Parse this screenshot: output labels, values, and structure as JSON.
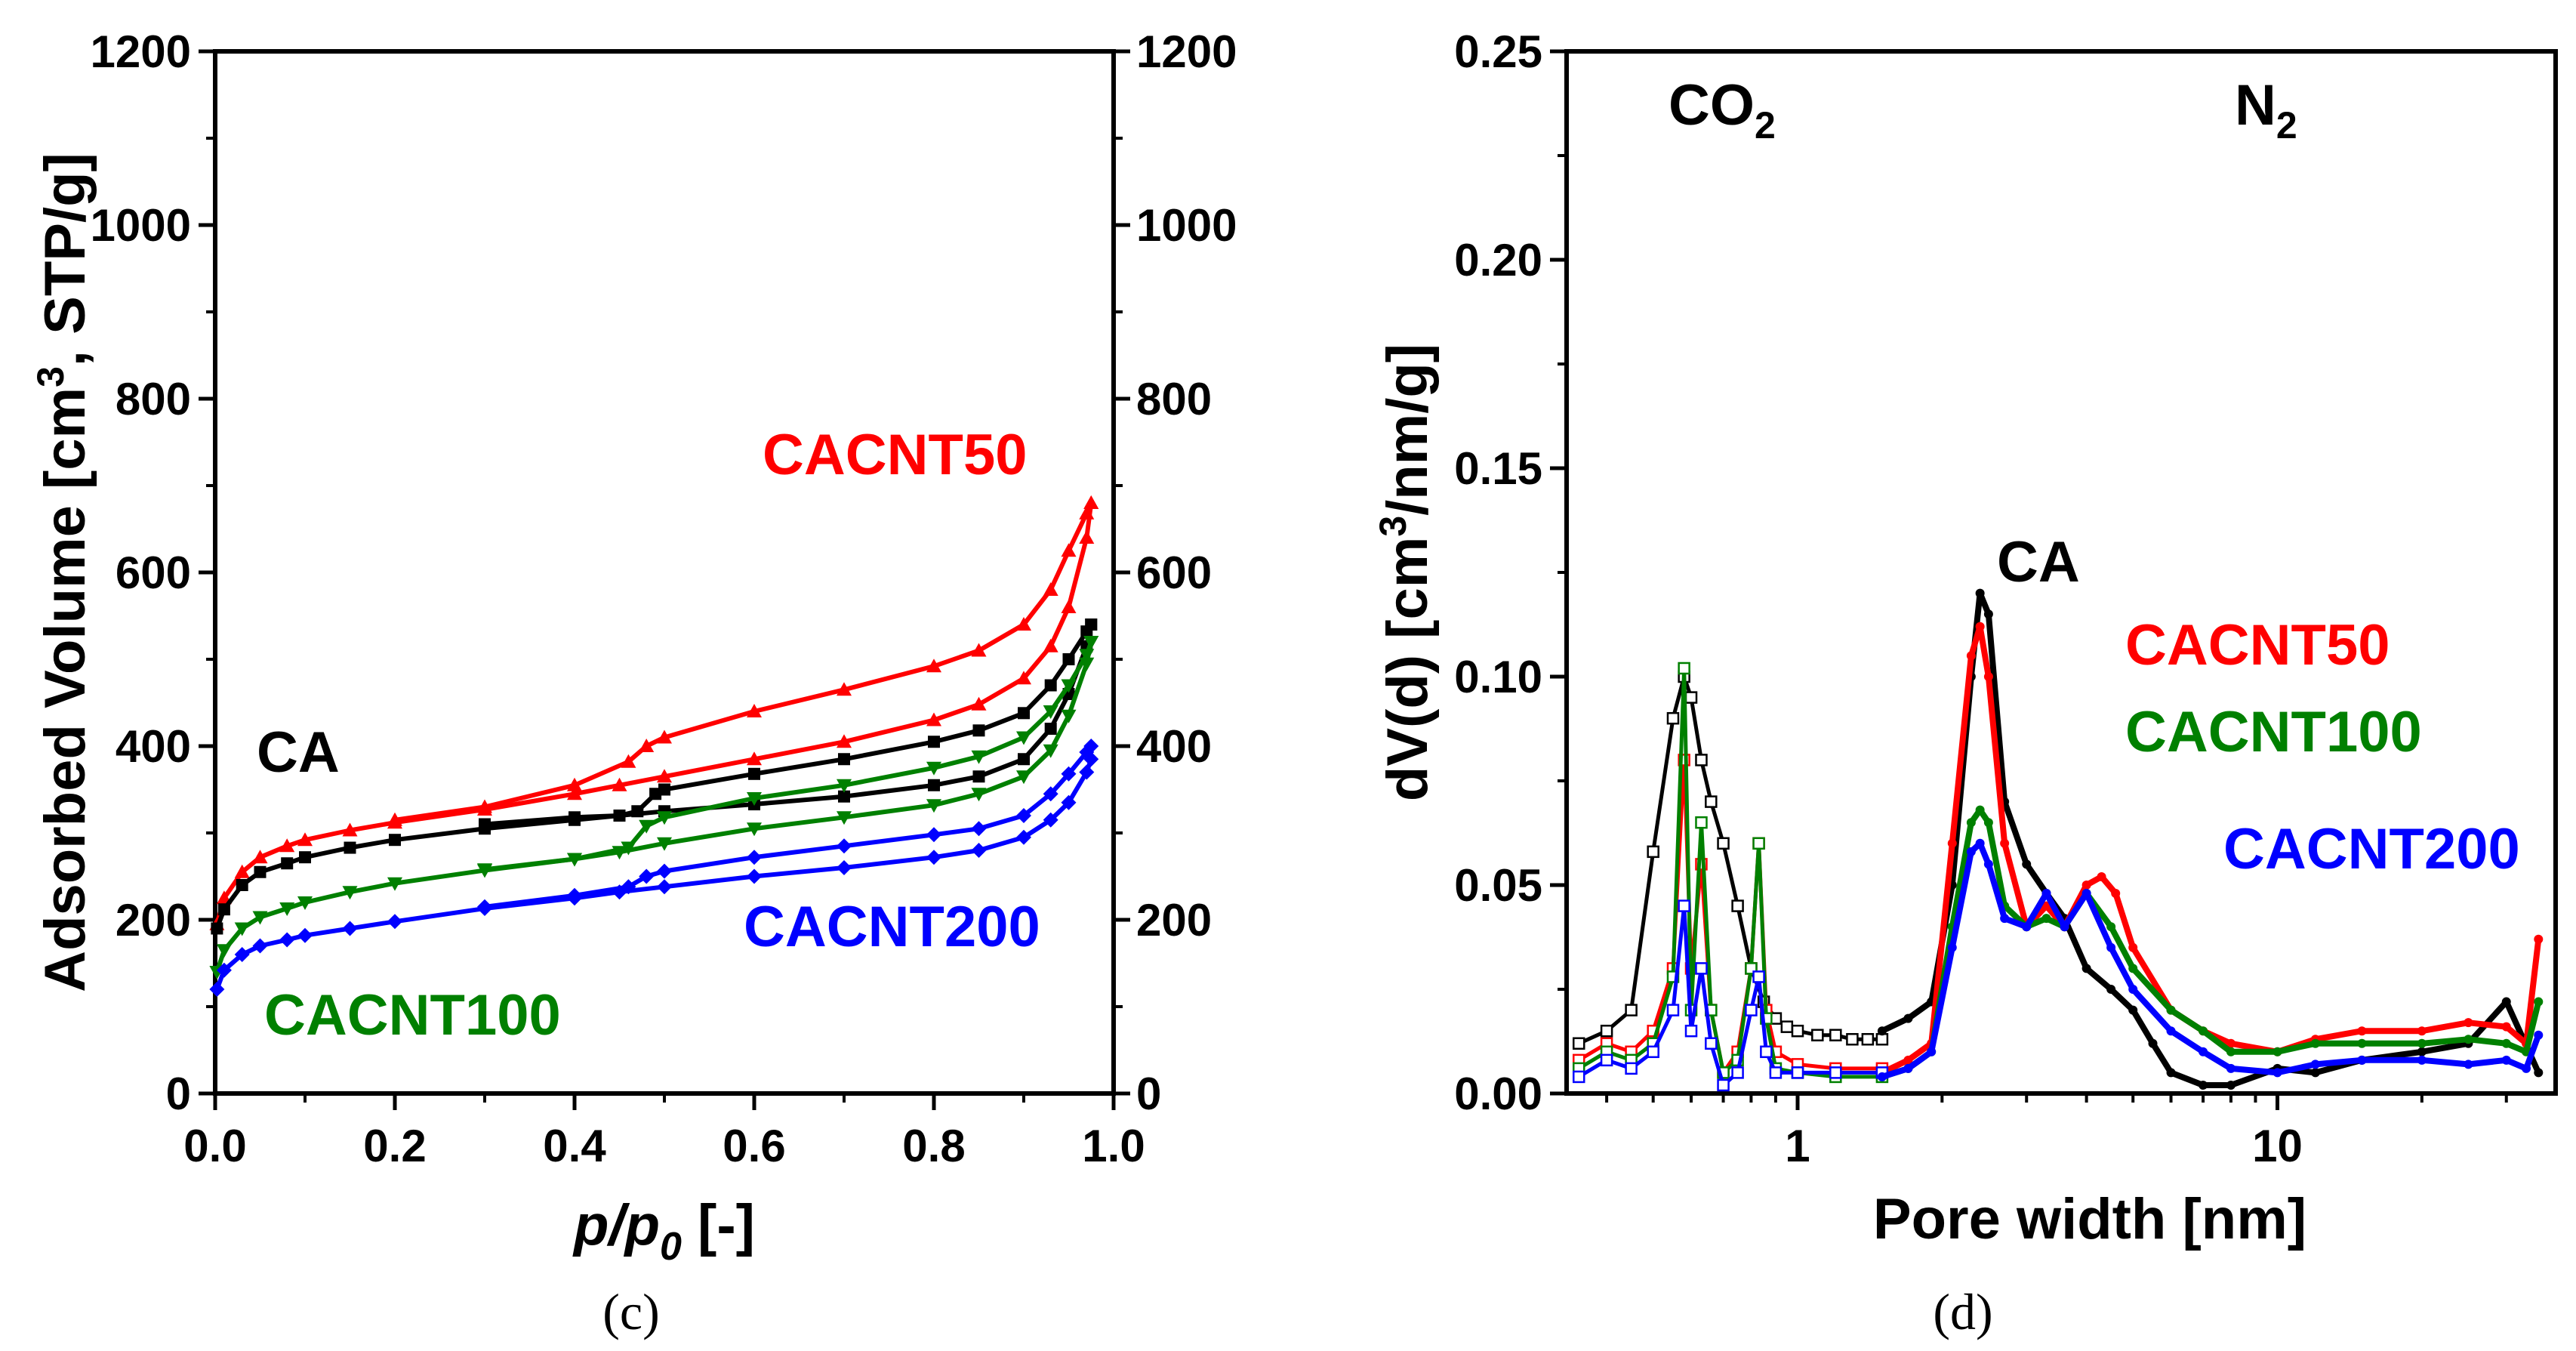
{
  "colors": {
    "CA": "#000000",
    "CACNT50": "#ff0000",
    "CACNT100": "#008000",
    "CACNT200": "#0000ff"
  },
  "chart_data": [
    {
      "panel": "(c)",
      "type": "line",
      "title": "",
      "xlabel": "p/p0 [-]",
      "xlabel_main": "p/p",
      "xlabel_sub": "0",
      "xlabel_tail": " [-]",
      "ylabel": "Adsorbed Volume [cm3, STP/g]",
      "ylabel_pre": "Adsorbed Volume [cm",
      "ylabel_sup": "3",
      "ylabel_post": ", STP/g]",
      "xlim": [
        0,
        1
      ],
      "ylim": [
        0,
        1200
      ],
      "x_ticks": [
        "0.0",
        "0.2",
        "0.4",
        "0.6",
        "0.8",
        "1.0"
      ],
      "y_ticks": [
        "0",
        "200",
        "400",
        "600",
        "800",
        "1000",
        "1200"
      ],
      "y2_ticks": [
        "0",
        "200",
        "400",
        "600",
        "800",
        "1000",
        "1200"
      ],
      "series": [
        {
          "name": "CACNT50",
          "label": "CACNT50",
          "marker": "triangle",
          "adsorption": {
            "x": [
              0.002,
              0.01,
              0.03,
              0.05,
              0.08,
              0.1,
              0.15,
              0.2,
              0.3,
              0.4,
              0.45,
              0.5,
              0.6,
              0.7,
              0.8,
              0.85,
              0.9,
              0.93,
              0.95,
              0.97,
              0.975
            ],
            "y": [
              195,
              225,
              255,
              272,
              285,
              292,
              303,
              312,
              327,
              345,
              355,
              365,
              385,
              405,
              430,
              448,
              478,
              515,
              560,
              640,
              680
            ]
          },
          "desorption": {
            "x": [
              0.975,
              0.97,
              0.95,
              0.93,
              0.9,
              0.85,
              0.8,
              0.7,
              0.6,
              0.5,
              0.48,
              0.46,
              0.4,
              0.3,
              0.2
            ],
            "y": [
              680,
              668,
              625,
              580,
              540,
              510,
              492,
              465,
              440,
              410,
              400,
              382,
              355,
              330,
              315
            ]
          }
        },
        {
          "name": "CA",
          "label": "CA",
          "marker": "square",
          "adsorption": {
            "x": [
              0.002,
              0.01,
              0.03,
              0.05,
              0.08,
              0.1,
              0.15,
              0.2,
              0.3,
              0.4,
              0.45,
              0.5,
              0.6,
              0.7,
              0.8,
              0.85,
              0.9,
              0.93,
              0.95,
              0.97,
              0.975
            ],
            "y": [
              190,
              212,
              240,
              255,
              265,
              272,
              283,
              292,
              305,
              315,
              320,
              325,
              333,
              342,
              355,
              365,
              385,
              420,
              460,
              515,
              540
            ]
          },
          "desorption": {
            "x": [
              0.975,
              0.97,
              0.95,
              0.93,
              0.9,
              0.85,
              0.8,
              0.7,
              0.6,
              0.5,
              0.49,
              0.47,
              0.45,
              0.4,
              0.3
            ],
            "y": [
              540,
              532,
              500,
              470,
              438,
              418,
              405,
              385,
              368,
              350,
              345,
              325,
              320,
              318,
              310
            ]
          }
        },
        {
          "name": "CACNT100",
          "label": "CACNT100",
          "marker": "triangle-down",
          "adsorption": {
            "x": [
              0.002,
              0.01,
              0.03,
              0.05,
              0.08,
              0.1,
              0.15,
              0.2,
              0.3,
              0.4,
              0.45,
              0.5,
              0.6,
              0.7,
              0.8,
              0.85,
              0.9,
              0.93,
              0.95,
              0.97,
              0.975
            ],
            "y": [
              140,
              165,
              190,
              203,
              213,
              220,
              232,
              242,
              257,
              270,
              278,
              288,
              305,
              318,
              332,
              345,
              365,
              395,
              435,
              495,
              520
            ]
          },
          "desorption": {
            "x": [
              0.975,
              0.97,
              0.95,
              0.93,
              0.9,
              0.85,
              0.8,
              0.7,
              0.6,
              0.5,
              0.48,
              0.46,
              0.4,
              0.3
            ],
            "y": [
              520,
              505,
              470,
              440,
              410,
              388,
              375,
              355,
              340,
              318,
              308,
              283,
              270,
              258
            ]
          }
        },
        {
          "name": "CACNT200",
          "label": "CACNT200",
          "marker": "diamond",
          "adsorption": {
            "x": [
              0.002,
              0.01,
              0.03,
              0.05,
              0.08,
              0.1,
              0.15,
              0.2,
              0.3,
              0.4,
              0.45,
              0.5,
              0.6,
              0.7,
              0.8,
              0.85,
              0.9,
              0.93,
              0.95,
              0.97,
              0.975
            ],
            "y": [
              120,
              142,
              160,
              170,
              177,
              182,
              190,
              198,
              213,
              225,
              232,
              238,
              250,
              260,
              272,
              280,
              295,
              315,
              335,
              370,
              385
            ]
          },
          "desorption": {
            "x": [
              0.975,
              0.97,
              0.95,
              0.93,
              0.9,
              0.85,
              0.8,
              0.7,
              0.6,
              0.5,
              0.48,
              0.46,
              0.4,
              0.3
            ],
            "y": [
              400,
              393,
              368,
              345,
              320,
              305,
              298,
              285,
              272,
              256,
              250,
              238,
              228,
              215
            ]
          }
        }
      ]
    },
    {
      "panel": "(d)",
      "type": "line",
      "title": "",
      "xlabel": "Pore width [nm]",
      "ylabel": "dV(d) [cm3/nm/g]",
      "ylabel_pre": "dV(d) [cm",
      "ylabel_sup": "3",
      "ylabel_post": "/nm/g]",
      "x_scale": "log",
      "xlim": [
        0.33,
        38
      ],
      "ylim": [
        0,
        0.25
      ],
      "x_ticks": [
        "1",
        "10"
      ],
      "y_ticks": [
        "0.00",
        "0.05",
        "0.10",
        "0.15",
        "0.20",
        "0.25"
      ],
      "regions": [
        {
          "label_main": "CO",
          "label_sub": "2"
        },
        {
          "label_main": "N",
          "label_sub": "2"
        }
      ],
      "series": [
        {
          "name": "CA",
          "label": "CA",
          "co2": {
            "x": [
              0.35,
              0.4,
              0.45,
              0.5,
              0.55,
              0.58,
              0.6,
              0.63,
              0.66,
              0.7,
              0.75,
              0.8,
              0.85,
              0.9,
              0.95,
              1.0,
              1.1,
              1.2,
              1.3,
              1.4,
              1.5
            ],
            "y": [
              0.012,
              0.015,
              0.02,
              0.058,
              0.09,
              0.1,
              0.095,
              0.08,
              0.07,
              0.06,
              0.045,
              0.03,
              0.022,
              0.018,
              0.016,
              0.015,
              0.014,
              0.014,
              0.013,
              0.013,
              0.013
            ]
          },
          "n2": {
            "x": [
              1.5,
              1.7,
              1.9,
              2.1,
              2.3,
              2.4,
              2.5,
              2.7,
              3.0,
              3.3,
              3.6,
              4.0,
              4.5,
              5.0,
              5.5,
              6.0,
              7.0,
              8.0,
              10.0,
              12.0,
              15.0,
              20.0,
              25.0,
              30.0,
              35.0
            ],
            "y": [
              0.015,
              0.018,
              0.022,
              0.05,
              0.1,
              0.12,
              0.115,
              0.07,
              0.055,
              0.048,
              0.042,
              0.03,
              0.025,
              0.02,
              0.012,
              0.005,
              0.002,
              0.002,
              0.006,
              0.005,
              0.008,
              0.01,
              0.012,
              0.022,
              0.005
            ]
          }
        },
        {
          "name": "CACNT50",
          "label": "CACNT50",
          "co2": {
            "x": [
              0.35,
              0.4,
              0.45,
              0.5,
              0.55,
              0.58,
              0.6,
              0.63,
              0.66,
              0.7,
              0.75,
              0.8,
              0.83,
              0.86,
              0.9,
              1.0,
              1.2,
              1.5
            ],
            "y": [
              0.008,
              0.012,
              0.01,
              0.015,
              0.03,
              0.08,
              0.03,
              0.055,
              0.02,
              0.005,
              0.01,
              0.03,
              0.06,
              0.02,
              0.01,
              0.007,
              0.006,
              0.006
            ]
          },
          "n2": {
            "x": [
              1.5,
              1.7,
              1.9,
              2.1,
              2.3,
              2.4,
              2.5,
              2.7,
              3.0,
              3.3,
              3.6,
              4.0,
              4.3,
              4.6,
              5.0,
              6.0,
              7.0,
              8.0,
              10.0,
              12.0,
              15.0,
              20.0,
              25.0,
              30.0,
              33.0,
              35.0
            ],
            "y": [
              0.005,
              0.008,
              0.012,
              0.06,
              0.105,
              0.112,
              0.1,
              0.06,
              0.04,
              0.045,
              0.04,
              0.05,
              0.052,
              0.048,
              0.035,
              0.02,
              0.015,
              0.012,
              0.01,
              0.013,
              0.015,
              0.015,
              0.017,
              0.016,
              0.012,
              0.037
            ]
          }
        },
        {
          "name": "CACNT100",
          "label": "CACNT100",
          "co2": {
            "x": [
              0.35,
              0.4,
              0.45,
              0.5,
              0.55,
              0.58,
              0.6,
              0.63,
              0.66,
              0.7,
              0.75,
              0.8,
              0.83,
              0.86,
              0.9,
              1.0,
              1.2,
              1.5
            ],
            "y": [
              0.006,
              0.01,
              0.008,
              0.012,
              0.028,
              0.102,
              0.02,
              0.065,
              0.02,
              0.005,
              0.008,
              0.03,
              0.06,
              0.018,
              0.006,
              0.005,
              0.004,
              0.004
            ]
          },
          "n2": {
            "x": [
              1.5,
              1.7,
              1.9,
              2.1,
              2.3,
              2.4,
              2.5,
              2.7,
              3.0,
              3.3,
              3.6,
              4.0,
              4.5,
              5.0,
              6.0,
              7.0,
              8.0,
              10.0,
              12.0,
              15.0,
              20.0,
              25.0,
              30.0,
              33.0,
              35.0
            ],
            "y": [
              0.004,
              0.006,
              0.01,
              0.04,
              0.065,
              0.068,
              0.065,
              0.045,
              0.04,
              0.042,
              0.04,
              0.048,
              0.04,
              0.03,
              0.02,
              0.015,
              0.01,
              0.01,
              0.012,
              0.012,
              0.012,
              0.013,
              0.012,
              0.01,
              0.022
            ]
          }
        },
        {
          "name": "CACNT200",
          "label": "CACNT200",
          "co2": {
            "x": [
              0.35,
              0.4,
              0.45,
              0.5,
              0.55,
              0.58,
              0.6,
              0.63,
              0.66,
              0.7,
              0.75,
              0.8,
              0.83,
              0.86,
              0.9,
              1.0,
              1.2,
              1.5
            ],
            "y": [
              0.004,
              0.008,
              0.006,
              0.01,
              0.02,
              0.045,
              0.015,
              0.03,
              0.012,
              0.002,
              0.005,
              0.02,
              0.028,
              0.01,
              0.005,
              0.005,
              0.005,
              0.005
            ]
          },
          "n2": {
            "x": [
              1.5,
              1.7,
              1.9,
              2.1,
              2.3,
              2.4,
              2.5,
              2.7,
              3.0,
              3.3,
              3.6,
              4.0,
              4.5,
              5.0,
              6.0,
              7.0,
              8.0,
              10.0,
              12.0,
              15.0,
              20.0,
              25.0,
              30.0,
              33.0,
              35.0
            ],
            "y": [
              0.004,
              0.006,
              0.01,
              0.035,
              0.058,
              0.06,
              0.055,
              0.042,
              0.04,
              0.048,
              0.04,
              0.048,
              0.035,
              0.025,
              0.015,
              0.01,
              0.006,
              0.005,
              0.007,
              0.008,
              0.008,
              0.007,
              0.008,
              0.006,
              0.014
            ]
          }
        }
      ]
    }
  ]
}
